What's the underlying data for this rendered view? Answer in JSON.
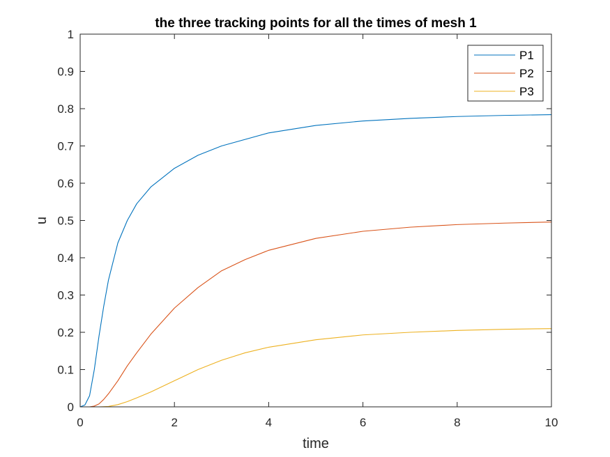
{
  "chart_data": {
    "type": "line",
    "title": "the three tracking points for all the times of mesh 1",
    "xlabel": "time",
    "ylabel": "u",
    "xlim": [
      0,
      10
    ],
    "ylim": [
      0,
      1
    ],
    "xticks": [
      0,
      2,
      4,
      6,
      8,
      10
    ],
    "yticks": [
      0,
      0.1,
      0.2,
      0.3,
      0.4,
      0.5,
      0.6,
      0.7,
      0.8,
      0.9,
      1
    ],
    "xtick_labels": [
      "0",
      "2",
      "4",
      "6",
      "8",
      "10"
    ],
    "ytick_labels": [
      "0",
      "0.1",
      "0.2",
      "0.3",
      "0.4",
      "0.5",
      "0.6",
      "0.7",
      "0.8",
      "0.9",
      "1"
    ],
    "grid": false,
    "legend": "top-right",
    "series": [
      {
        "name": "P1",
        "color": "#0072BD",
        "x": [
          0,
          0.1,
          0.2,
          0.3,
          0.4,
          0.5,
          0.6,
          0.8,
          1.0,
          1.2,
          1.5,
          2.0,
          2.5,
          3.0,
          4.0,
          5.0,
          6.0,
          7.0,
          8.0,
          9.0,
          10.0
        ],
        "y": [
          0,
          0.005,
          0.03,
          0.1,
          0.19,
          0.27,
          0.34,
          0.44,
          0.5,
          0.545,
          0.59,
          0.64,
          0.675,
          0.7,
          0.735,
          0.755,
          0.767,
          0.774,
          0.779,
          0.782,
          0.784
        ]
      },
      {
        "name": "P2",
        "color": "#D95319",
        "x": [
          0,
          0.2,
          0.3,
          0.4,
          0.5,
          0.6,
          0.8,
          1.0,
          1.2,
          1.5,
          2.0,
          2.5,
          3.0,
          3.5,
          4.0,
          5.0,
          6.0,
          7.0,
          8.0,
          9.0,
          10.0
        ],
        "y": [
          0,
          0,
          0.002,
          0.008,
          0.02,
          0.035,
          0.07,
          0.11,
          0.145,
          0.195,
          0.265,
          0.32,
          0.365,
          0.395,
          0.42,
          0.452,
          0.471,
          0.482,
          0.489,
          0.493,
          0.496
        ]
      },
      {
        "name": "P3",
        "color": "#EDB120",
        "x": [
          0,
          0.4,
          0.6,
          0.8,
          1.0,
          1.2,
          1.5,
          2.0,
          2.5,
          3.0,
          3.5,
          4.0,
          5.0,
          6.0,
          7.0,
          8.0,
          9.0,
          10.0
        ],
        "y": [
          0,
          0,
          0.001,
          0.006,
          0.014,
          0.024,
          0.04,
          0.07,
          0.1,
          0.125,
          0.145,
          0.16,
          0.18,
          0.193,
          0.2,
          0.205,
          0.208,
          0.21
        ]
      }
    ]
  }
}
